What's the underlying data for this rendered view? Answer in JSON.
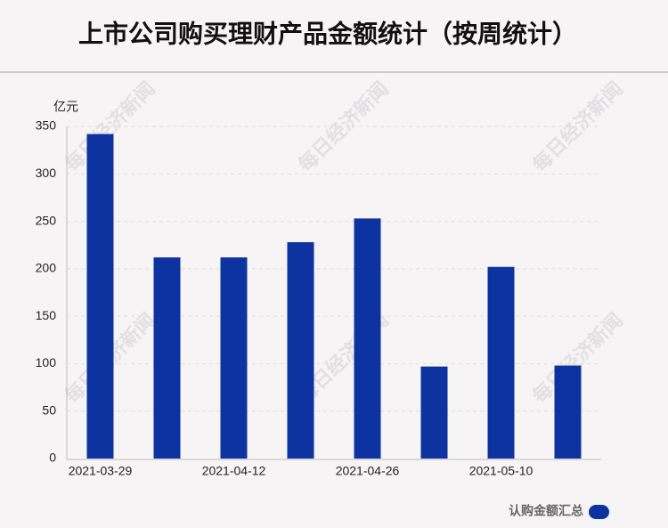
{
  "chart_data": {
    "type": "bar",
    "title": "上市公司购买理财产品金额统计（按周统计）",
    "y_unit": "亿元",
    "watermark": "每日经济新闻",
    "categories": [
      "2021-03-29",
      null,
      "2021-04-12",
      null,
      "2021-04-26",
      null,
      "2021-05-10",
      null
    ],
    "series": [
      {
        "name": "认购金额汇总",
        "color": "#0d33a0",
        "values": [
          342,
          212,
          212,
          228,
          253,
          97,
          202,
          98
        ]
      }
    ],
    "ylim": [
      0,
      350
    ],
    "yticks": [
      0,
      50,
      100,
      150,
      200,
      250,
      300,
      350
    ],
    "grid": true
  }
}
